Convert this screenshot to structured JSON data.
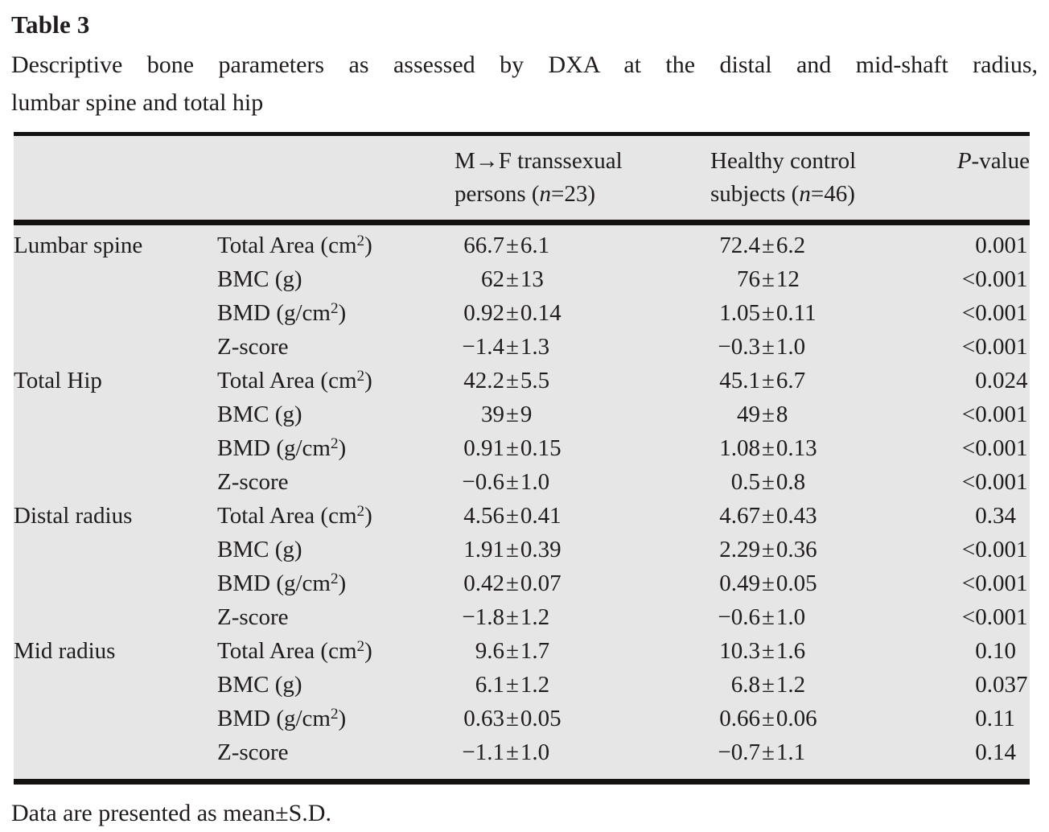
{
  "page": {
    "title": "Table 3",
    "caption_line1": "Descriptive bone parameters as assessed by DXA at the distal and mid-shaft radius,",
    "caption_line2": "lumbar spine and total hip",
    "footnote": "Data are presented as mean±S.D."
  },
  "colors": {
    "table_background": "#e6e6e7",
    "rule": "#141211",
    "text": "#1f1c1b",
    "page_background": "#ffffff"
  },
  "table": {
    "header": {
      "group1": {
        "line1": "M→F transsexual",
        "line2_pre": "persons (",
        "line2_var": "n",
        "line2_post": "=23)"
      },
      "group2": {
        "line1": "Healthy control",
        "line2_pre": "subjects (",
        "line2_var": "n",
        "line2_post": "=46)"
      },
      "pvalue": {
        "var": "P",
        "post": "-value"
      }
    },
    "sections": [
      {
        "site": "Lumbar spine",
        "rows": [
          {
            "param": "Total Area (cm^2)",
            "group1": "66.7±6.1",
            "group2": "72.4±6.2",
            "p": "0.001"
          },
          {
            "param": "BMC (g)",
            "group1": "62±13",
            "group2": "76±12",
            "p": "<0.001"
          },
          {
            "param": "BMD (g/cm^2)",
            "group1": "0.92±0.14",
            "group2": "1.05±0.11",
            "p": "<0.001"
          },
          {
            "param": "Z-score",
            "group1": "−1.4±1.3",
            "group2": "−0.3±1.0",
            "p": "<0.001"
          }
        ]
      },
      {
        "site": "Total Hip",
        "rows": [
          {
            "param": "Total Area (cm^2)",
            "group1": "42.2±5.5",
            "group2": "45.1±6.7",
            "p": "0.024"
          },
          {
            "param": "BMC (g)",
            "group1": "39±9",
            "group2": "49±8",
            "p": "<0.001"
          },
          {
            "param": "BMD (g/cm^2)",
            "group1": "0.91±0.15",
            "group2": "1.08±0.13",
            "p": "<0.001"
          },
          {
            "param": "Z-score",
            "group1": "−0.6±1.0",
            "group2": "0.5±0.8",
            "p": "<0.001"
          }
        ]
      },
      {
        "site": "Distal radius",
        "rows": [
          {
            "param": "Total Area (cm^2)",
            "group1": "4.56±0.41",
            "group2": "4.67±0.43",
            "p": "0.34"
          },
          {
            "param": "BMC (g)",
            "group1": "1.91±0.39",
            "group2": "2.29±0.36",
            "p": "<0.001"
          },
          {
            "param": "BMD (g/cm^2)",
            "group1": "0.42±0.07",
            "group2": "0.49±0.05",
            "p": "<0.001"
          },
          {
            "param": "Z-score",
            "group1": "−1.8±1.2",
            "group2": "−0.6±1.0",
            "p": "<0.001"
          }
        ]
      },
      {
        "site": "Mid radius",
        "rows": [
          {
            "param": "Total Area (cm^2)",
            "group1": "9.6±1.7",
            "group2": "10.3±1.6",
            "p": "0.10"
          },
          {
            "param": "BMC (g)",
            "group1": "6.1±1.2",
            "group2": "6.8±1.2",
            "p": "0.037"
          },
          {
            "param": "BMD (g/cm^2)",
            "group1": "0.63±0.05",
            "group2": "0.66±0.06",
            "p": "0.11"
          },
          {
            "param": "Z-score",
            "group1": "−1.1±1.0",
            "group2": "−0.7±1.1",
            "p": "0.14"
          }
        ]
      }
    ]
  }
}
